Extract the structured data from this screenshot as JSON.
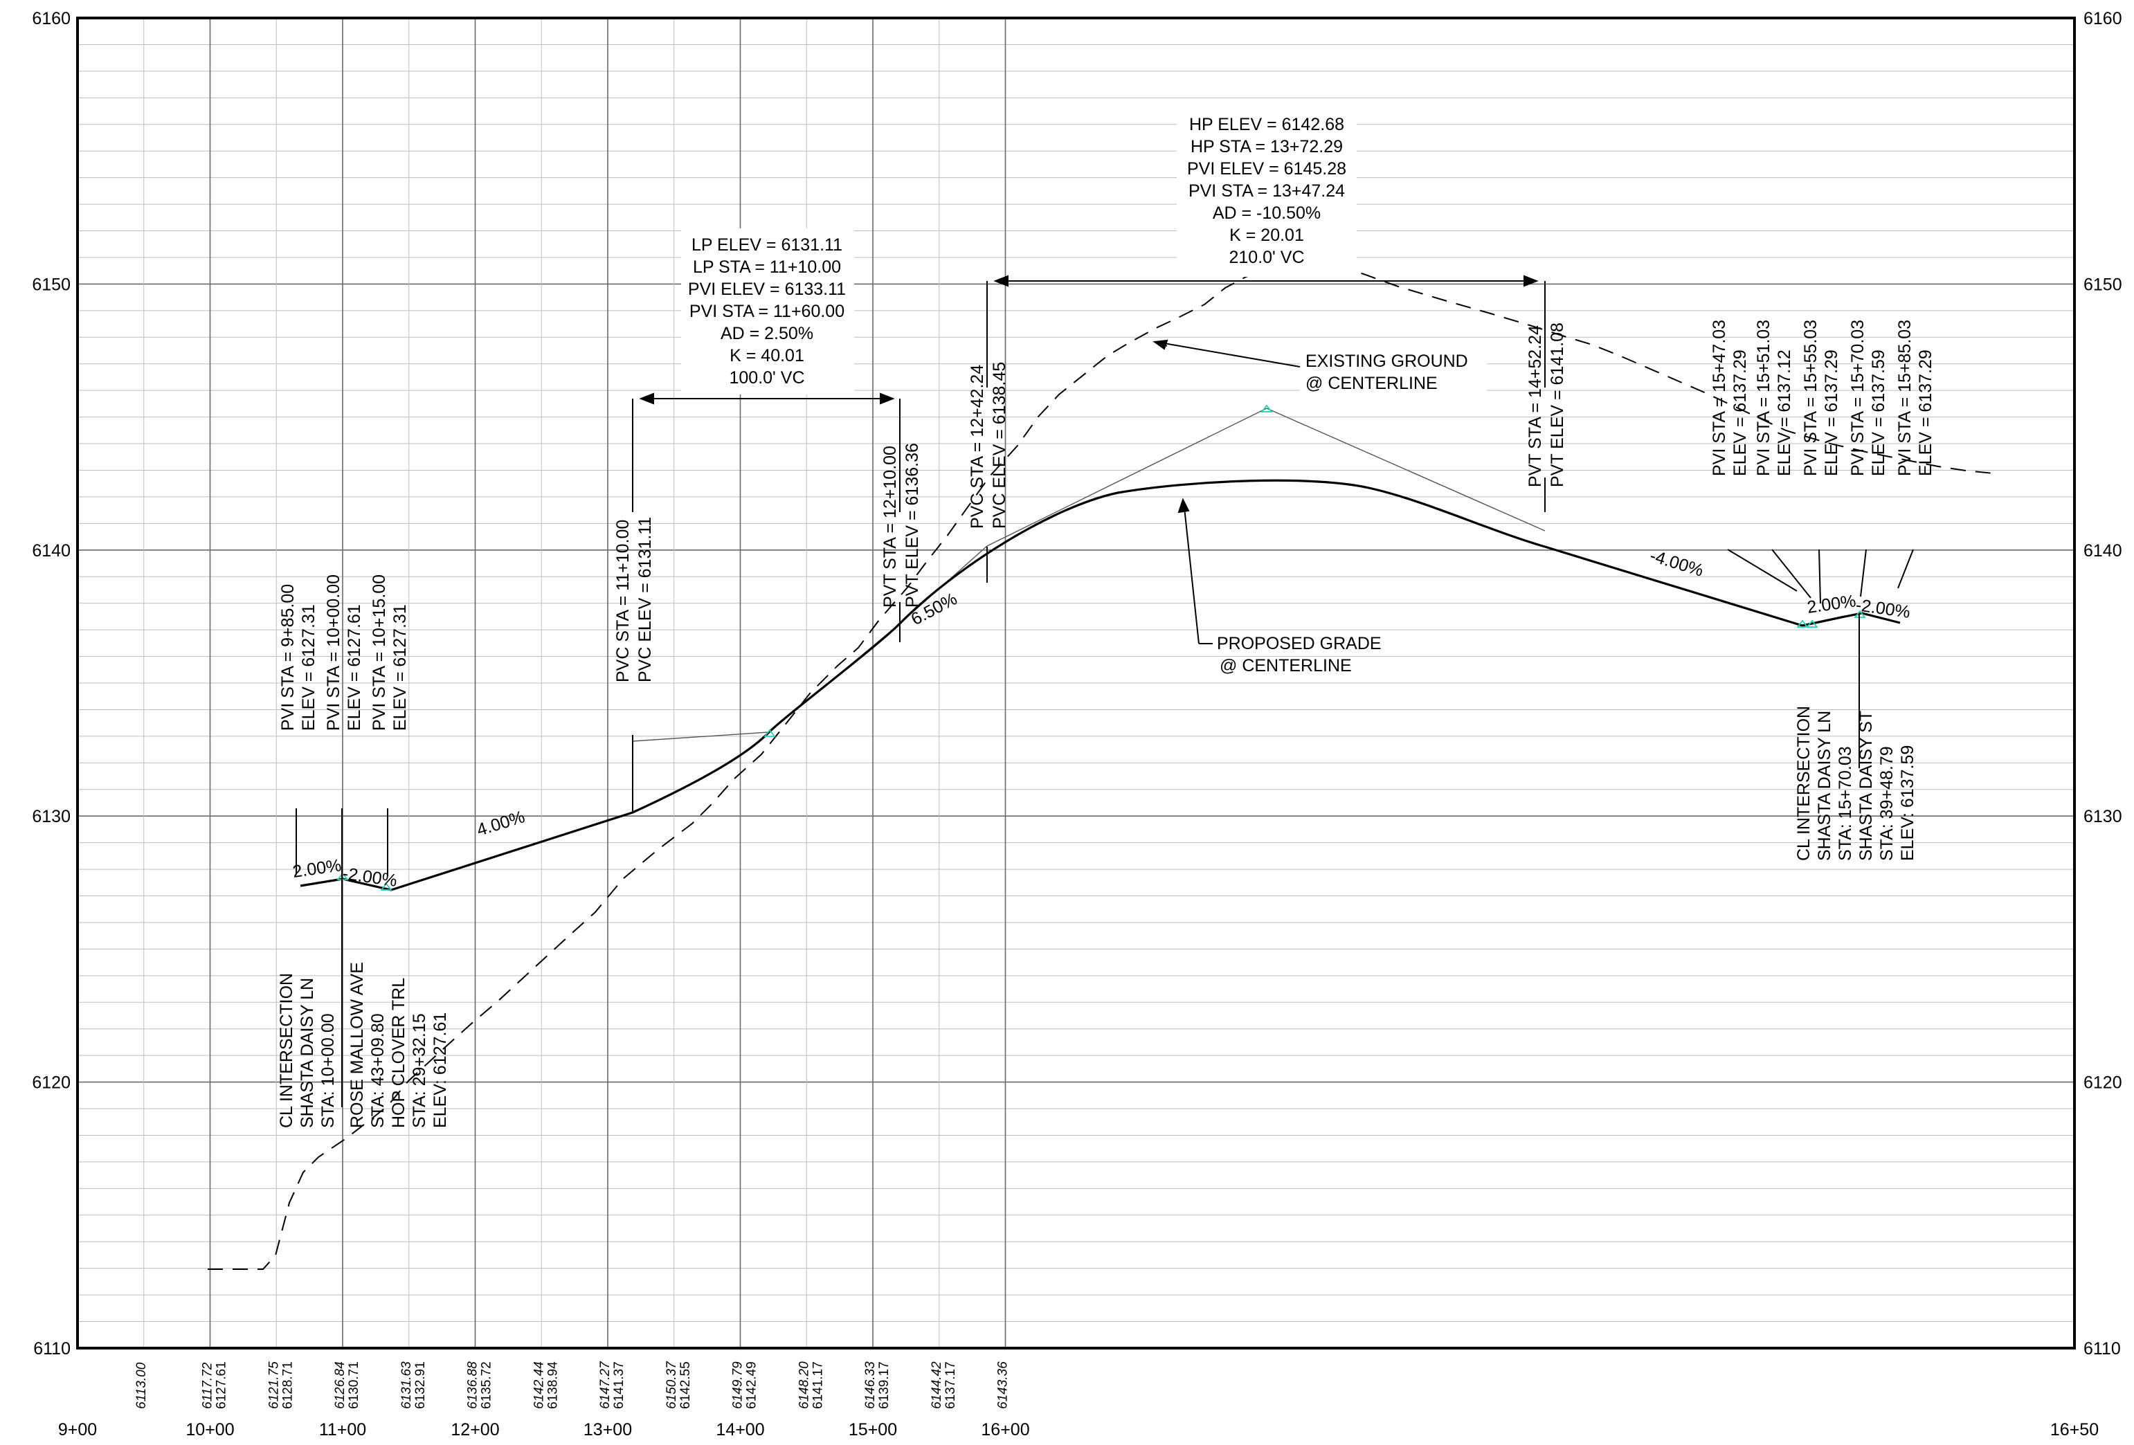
{
  "axes": {
    "x_labels": [
      "9+00",
      "10+00",
      "11+00",
      "12+00",
      "13+00",
      "14+00",
      "15+00",
      "16+00",
      "16+50"
    ],
    "y_labels": [
      "6110",
      "6120",
      "6130",
      "6140",
      "6150",
      "6160"
    ]
  },
  "bottom_elevations": [
    {
      "sta": "9+50",
      "existing": "6113.00",
      "proposed": ""
    },
    {
      "sta": "10+00",
      "existing": "6117.72",
      "proposed": "6127.61"
    },
    {
      "sta": "10+50",
      "existing": "6121.75",
      "proposed": "6128.71"
    },
    {
      "sta": "11+00",
      "existing": "6126.84",
      "proposed": "6130.71"
    },
    {
      "sta": "11+50",
      "existing": "6131.63",
      "proposed": "6132.91"
    },
    {
      "sta": "12+00",
      "existing": "6136.88",
      "proposed": "6135.72"
    },
    {
      "sta": "12+50",
      "existing": "6142.44",
      "proposed": "6138.94"
    },
    {
      "sta": "13+00",
      "existing": "6147.27",
      "proposed": "6141.37"
    },
    {
      "sta": "13+50",
      "existing": "6150.37",
      "proposed": "6142.55"
    },
    {
      "sta": "14+00",
      "existing": "6149.79",
      "proposed": "6142.49"
    },
    {
      "sta": "14+50",
      "existing": "6148.20",
      "proposed": "6141.17"
    },
    {
      "sta": "15+00",
      "existing": "6146.33",
      "proposed": "6139.17"
    },
    {
      "sta": "15+50",
      "existing": "6144.42",
      "proposed": "6137.17"
    },
    {
      "sta": "16+00",
      "existing": "6143.36",
      "proposed": ""
    }
  ],
  "curves": {
    "sag": [
      "LP ELEV = 6131.11",
      "LP STA = 11+10.00",
      "PVI ELEV = 6133.11",
      "PVI STA = 11+60.00",
      "AD = 2.50%",
      "K = 40.01",
      "100.0' VC"
    ],
    "crest": [
      "HP ELEV = 6142.68",
      "HP STA = 13+72.29",
      "PVI ELEV = 6145.28",
      "PVI STA = 13+47.24",
      "AD = -10.50%",
      "K = 20.01",
      "210.0' VC"
    ]
  },
  "vertical_labels": {
    "pvc1": [
      "PVC STA = 11+10.00",
      "PVC ELEV = 6131.11"
    ],
    "pvt1": [
      "PVT STA = 12+10.00",
      "PVT ELEV = 6136.36"
    ],
    "pvc2": [
      "PVC STA = 12+42.24",
      "PVC ELEV = 6138.45"
    ],
    "pvt2": [
      "PVT STA = 14+52.24",
      "PVT ELEV = 6141.08"
    ],
    "left_pvis": [
      "PVI STA = 9+85.00",
      "ELEV =  6127.31",
      "PVI STA = 10+00.00",
      "ELEV =  6127.61",
      "PVI STA = 10+15.00",
      "ELEV =  6127.31"
    ],
    "right_pvis": [
      "PVI STA = 15+47.03",
      "ELEV =  6137.29",
      "PVI STA = 15+51.03",
      "ELEV =  6137.12",
      "PVI STA = 15+55.03",
      "ELEV =  6137.29",
      "PVI STA = 15+70.03",
      "ELEV =  6137.59",
      "PVI STA = 15+85.03",
      "ELEV =  6137.29"
    ],
    "left_intersection": [
      "CL INTERSECTION",
      "SHASTA DAISY LN",
      "STA: 10+00.00",
      "ROSE MALLOW AVE",
      "STA: 43+09.80",
      "HOP CLOVER TRL",
      "STA: 29+32.15",
      "ELEV: 6127.61"
    ],
    "right_intersection": [
      "CL INTERSECTION",
      "SHASTA DAISY LN",
      "STA: 15+70.03",
      "SHASTA DAISY ST",
      "STA: 39+48.79",
      "ELEV: 6137.59"
    ]
  },
  "grades": {
    "left_a": "2.00%",
    "left_b": "-2.00%",
    "g1": "4.00%",
    "g2": "6.50%",
    "g3": "-4.00%",
    "right_a": "2.00%",
    "right_b": "-2.00%"
  },
  "callouts": {
    "existing": [
      "EXISTING GROUND",
      "@ CENTERLINE"
    ],
    "proposed": [
      "PROPOSED GRADE",
      "@ CENTERLINE"
    ]
  },
  "colors": {
    "pvi_marker": "#1fd3b5",
    "line": "#000000"
  }
}
